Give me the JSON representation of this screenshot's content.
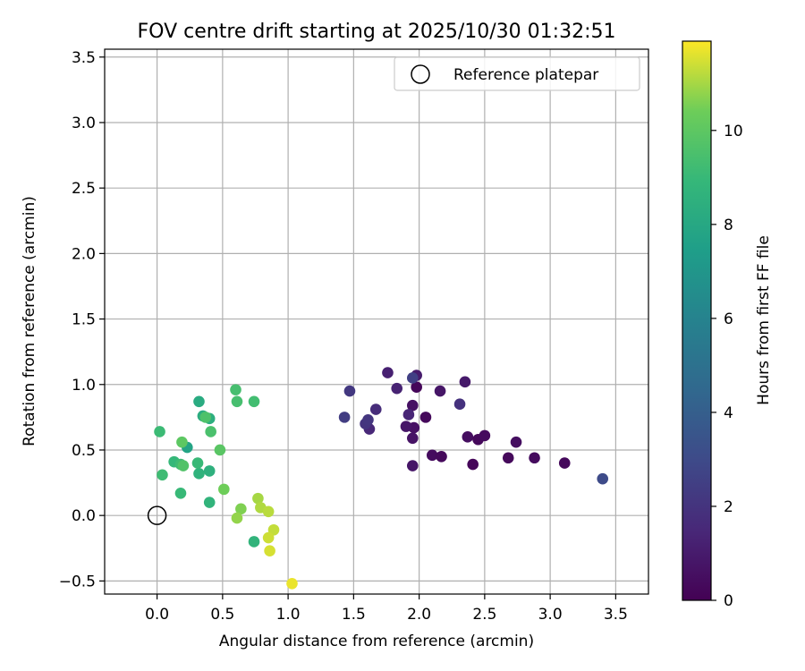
{
  "chart_data": {
    "type": "scatter",
    "title": "FOV centre drift starting at 2025/10/30 01:32:51",
    "xlabel": "Angular distance from reference (arcmin)",
    "ylabel": "Rotation from reference (arcmin)",
    "xlim": [
      -0.4,
      3.75
    ],
    "ylim": [
      -0.6,
      3.56
    ],
    "xticks": [
      0.0,
      0.5,
      1.0,
      1.5,
      2.0,
      2.5,
      3.0,
      3.5
    ],
    "xtick_labels": [
      "0.0",
      "0.5",
      "1.0",
      "1.5",
      "2.0",
      "2.5",
      "3.0",
      "3.5"
    ],
    "yticks": [
      -0.5,
      0.0,
      0.5,
      1.0,
      1.5,
      2.0,
      2.5,
      3.0,
      3.5
    ],
    "ytick_labels": [
      "−0.5",
      "0.0",
      "0.5",
      "1.0",
      "1.5",
      "2.0",
      "2.5",
      "3.0",
      "3.5"
    ],
    "grid": true,
    "legend": {
      "position": "top-right",
      "label": "Reference platepar"
    },
    "reference_point": {
      "x": 0.0,
      "y": 0.0
    },
    "colorbar": {
      "label": "Hours from first FF file",
      "range": [
        0,
        11.9
      ],
      "ticks": [
        0,
        2,
        4,
        6,
        8,
        10
      ],
      "tick_labels": [
        "0",
        "2",
        "4",
        "6",
        "8",
        "10"
      ],
      "colormap": "viridis"
    },
    "points": [
      {
        "x": 1.98,
        "y": 0.98,
        "c": 0.2
      },
      {
        "x": 2.05,
        "y": 0.75,
        "c": 0.3
      },
      {
        "x": 2.1,
        "y": 0.46,
        "c": 0.4
      },
      {
        "x": 2.17,
        "y": 0.45,
        "c": 0.3
      },
      {
        "x": 2.37,
        "y": 0.6,
        "c": 0.5
      },
      {
        "x": 2.41,
        "y": 0.39,
        "c": 0.2
      },
      {
        "x": 2.45,
        "y": 0.58,
        "c": 0.3
      },
      {
        "x": 2.5,
        "y": 0.61,
        "c": 0.4
      },
      {
        "x": 2.68,
        "y": 0.44,
        "c": 0.3
      },
      {
        "x": 2.74,
        "y": 0.56,
        "c": 0.5
      },
      {
        "x": 2.88,
        "y": 0.44,
        "c": 0.4
      },
      {
        "x": 3.11,
        "y": 0.4,
        "c": 0.3
      },
      {
        "x": 1.95,
        "y": 0.84,
        "c": 0.6
      },
      {
        "x": 1.96,
        "y": 0.67,
        "c": 0.6
      },
      {
        "x": 1.95,
        "y": 0.59,
        "c": 0.7
      },
      {
        "x": 1.9,
        "y": 0.68,
        "c": 0.8
      },
      {
        "x": 1.95,
        "y": 0.38,
        "c": 0.8
      },
      {
        "x": 2.16,
        "y": 0.95,
        "c": 0.8
      },
      {
        "x": 2.35,
        "y": 1.02,
        "c": 0.9
      },
      {
        "x": 1.98,
        "y": 1.07,
        "c": 1.0
      },
      {
        "x": 1.76,
        "y": 1.09,
        "c": 1.2
      },
      {
        "x": 1.83,
        "y": 0.97,
        "c": 1.3
      },
      {
        "x": 1.92,
        "y": 0.77,
        "c": 1.4
      },
      {
        "x": 1.62,
        "y": 0.66,
        "c": 1.5
      },
      {
        "x": 1.67,
        "y": 0.81,
        "c": 1.7
      },
      {
        "x": 2.31,
        "y": 0.85,
        "c": 1.9
      },
      {
        "x": 1.59,
        "y": 0.7,
        "c": 2.0
      },
      {
        "x": 1.61,
        "y": 0.73,
        "c": 2.1
      },
      {
        "x": 1.47,
        "y": 0.95,
        "c": 2.2
      },
      {
        "x": 1.43,
        "y": 0.75,
        "c": 2.4
      },
      {
        "x": 1.95,
        "y": 1.05,
        "c": 2.5
      },
      {
        "x": 3.4,
        "y": 0.28,
        "c": 3.0
      },
      {
        "x": 0.23,
        "y": 0.52,
        "c": 7.8
      },
      {
        "x": 0.32,
        "y": 0.87,
        "c": 8.2
      },
      {
        "x": 0.35,
        "y": 0.76,
        "c": 8.3
      },
      {
        "x": 0.4,
        "y": 0.74,
        "c": 8.4
      },
      {
        "x": 0.4,
        "y": 0.34,
        "c": 8.5
      },
      {
        "x": 0.32,
        "y": 0.32,
        "c": 8.6
      },
      {
        "x": 0.4,
        "y": 0.1,
        "c": 8.7
      },
      {
        "x": 0.74,
        "y": -0.2,
        "c": 8.7
      },
      {
        "x": 0.13,
        "y": 0.41,
        "c": 8.9
      },
      {
        "x": 0.31,
        "y": 0.4,
        "c": 9.0
      },
      {
        "x": 0.18,
        "y": 0.17,
        "c": 9.0
      },
      {
        "x": 0.02,
        "y": 0.64,
        "c": 9.1
      },
      {
        "x": 0.04,
        "y": 0.31,
        "c": 9.2
      },
      {
        "x": 0.18,
        "y": 0.39,
        "c": 9.2
      },
      {
        "x": 0.74,
        "y": 0.87,
        "c": 9.3
      },
      {
        "x": 0.6,
        "y": 0.96,
        "c": 9.4
      },
      {
        "x": 0.61,
        "y": 0.87,
        "c": 9.4
      },
      {
        "x": 0.41,
        "y": 0.64,
        "c": 9.5
      },
      {
        "x": 0.37,
        "y": 0.75,
        "c": 9.6
      },
      {
        "x": 0.2,
        "y": 0.38,
        "c": 9.7
      },
      {
        "x": 0.48,
        "y": 0.5,
        "c": 9.9
      },
      {
        "x": 0.19,
        "y": 0.56,
        "c": 10.0
      },
      {
        "x": 0.51,
        "y": 0.2,
        "c": 10.4
      },
      {
        "x": 0.64,
        "y": 0.05,
        "c": 10.6
      },
      {
        "x": 0.61,
        "y": -0.02,
        "c": 10.8
      },
      {
        "x": 0.77,
        "y": 0.13,
        "c": 11.0
      },
      {
        "x": 0.79,
        "y": 0.06,
        "c": 11.1
      },
      {
        "x": 0.85,
        "y": 0.03,
        "c": 11.2
      },
      {
        "x": 0.89,
        "y": -0.11,
        "c": 11.3
      },
      {
        "x": 0.85,
        "y": -0.17,
        "c": 11.4
      },
      {
        "x": 0.86,
        "y": -0.27,
        "c": 11.5
      },
      {
        "x": 1.03,
        "y": -0.52,
        "c": 11.7
      }
    ]
  }
}
